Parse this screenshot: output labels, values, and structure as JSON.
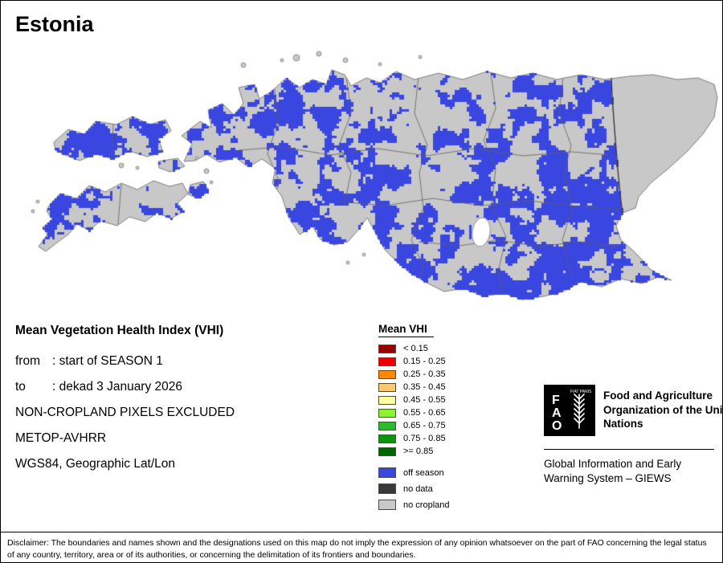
{
  "title": "Estonia",
  "info": {
    "heading": "Mean Vegetation Health Index (VHI)",
    "rows": [
      {
        "label": "from",
        "value": ": start of SEASON 1"
      },
      {
        "label": "to",
        "value": ": dekad 3 January 2026"
      }
    ],
    "lines": [
      "NON-CROPLAND PIXELS EXCLUDED",
      "METOP-AVHRR",
      "WGS84, Geographic Lat/Lon"
    ]
  },
  "legend": {
    "title": "Mean VHI",
    "classes": [
      {
        "label": "< 0.15",
        "color": "#990000"
      },
      {
        "label": "0.15 - 0.25",
        "color": "#ee0000"
      },
      {
        "label": "0.25 - 0.35",
        "color": "#ff8800"
      },
      {
        "label": "0.35 - 0.45",
        "color": "#ffc76e"
      },
      {
        "label": "0.45 - 0.55",
        "color": "#ffffa0"
      },
      {
        "label": "0.55 - 0.65",
        "color": "#8df52f"
      },
      {
        "label": "0.65 - 0.75",
        "color": "#2eb82e"
      },
      {
        "label": "0.75 - 0.85",
        "color": "#0d940d"
      },
      {
        "label": ">= 0.85",
        "color": "#006400"
      }
    ],
    "extras": [
      {
        "label": "off season",
        "color": "#3a46e0"
      },
      {
        "label": "no data",
        "color": "#383838"
      },
      {
        "label": "no cropland",
        "color": "#c8c8c8"
      }
    ]
  },
  "footer": {
    "fao_name": "Food and Agriculture Organization of the United Nations",
    "giews": "Global Information and Early Warning System – GIEWS",
    "fao_logo": {
      "letters": [
        "F",
        "A",
        "O"
      ],
      "motto": "FIAT PANIS"
    }
  },
  "disclaimer": "Disclaimer: The boundaries and names shown and the designations used on this map do not imply the expression of any opinion whatsoever on the part of FAO concerning the legal status of any country, territory, area or of its authorities, or concerning the delimitation of its frontiers and boundaries.",
  "map": {
    "land_color": "#c8c8c8",
    "offseason_color": "#3a46e0",
    "coast_color": "#7d7d7d",
    "admin_line_color": "#5f5f5f",
    "border_color": "#3c3c3c",
    "water_color": "#ffffff"
  }
}
